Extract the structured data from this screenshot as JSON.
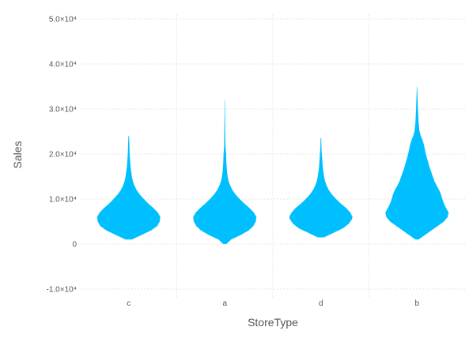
{
  "chart_data": {
    "type": "violin",
    "xlabel": "StoreType",
    "ylabel": "Sales",
    "categories": [
      "c",
      "a",
      "d",
      "b"
    ],
    "ylim": [
      -12000,
      51000
    ],
    "y_ticks": [
      -10000,
      0,
      10000,
      20000,
      30000,
      40000,
      50000
    ],
    "y_tick_labels": [
      "-1.0×10⁴",
      "0",
      "1.0×10⁴",
      "2.0×10⁴",
      "3.0×10⁴",
      "4.0×10⁴",
      "5.0×10⁴"
    ],
    "grid": true,
    "color": "#00bfff",
    "series": [
      {
        "category": "c",
        "min": 1000,
        "max": 24000,
        "median": 6000,
        "profile": [
          [
            1000,
            0.1
          ],
          [
            2000,
            0.4
          ],
          [
            3000,
            0.7
          ],
          [
            4000,
            0.9
          ],
          [
            5000,
            0.98
          ],
          [
            6000,
            1.0
          ],
          [
            7000,
            0.92
          ],
          [
            8000,
            0.78
          ],
          [
            9000,
            0.62
          ],
          [
            10000,
            0.48
          ],
          [
            11000,
            0.35
          ],
          [
            12000,
            0.25
          ],
          [
            13000,
            0.18
          ],
          [
            14000,
            0.13
          ],
          [
            15000,
            0.1
          ],
          [
            16000,
            0.08
          ],
          [
            17000,
            0.06
          ],
          [
            18000,
            0.05
          ],
          [
            19000,
            0.04
          ],
          [
            20000,
            0.03
          ],
          [
            22000,
            0.02
          ],
          [
            24000,
            0.01
          ]
        ]
      },
      {
        "category": "a",
        "min": 0,
        "max": 32000,
        "median": 6000,
        "profile": [
          [
            0,
            0.05
          ],
          [
            1000,
            0.2
          ],
          [
            2000,
            0.5
          ],
          [
            3000,
            0.75
          ],
          [
            4000,
            0.9
          ],
          [
            5000,
            0.98
          ],
          [
            6000,
            1.0
          ],
          [
            7000,
            0.92
          ],
          [
            8000,
            0.78
          ],
          [
            9000,
            0.62
          ],
          [
            10000,
            0.47
          ],
          [
            11000,
            0.34
          ],
          [
            12000,
            0.24
          ],
          [
            13000,
            0.17
          ],
          [
            14000,
            0.12
          ],
          [
            15000,
            0.09
          ],
          [
            16000,
            0.07
          ],
          [
            18000,
            0.05
          ],
          [
            20000,
            0.04
          ],
          [
            22000,
            0.02
          ],
          [
            25000,
            0.015
          ],
          [
            28000,
            0.01
          ],
          [
            32000,
            0.005
          ]
        ]
      },
      {
        "category": "d",
        "min": 1500,
        "max": 23500,
        "median": 6000,
        "profile": [
          [
            1500,
            0.1
          ],
          [
            2500,
            0.4
          ],
          [
            3500,
            0.7
          ],
          [
            4500,
            0.88
          ],
          [
            5500,
            0.98
          ],
          [
            6000,
            1.0
          ],
          [
            7000,
            0.93
          ],
          [
            8000,
            0.8
          ],
          [
            9000,
            0.63
          ],
          [
            10000,
            0.48
          ],
          [
            11000,
            0.35
          ],
          [
            12000,
            0.25
          ],
          [
            13000,
            0.18
          ],
          [
            14000,
            0.13
          ],
          [
            15000,
            0.1
          ],
          [
            16000,
            0.08
          ],
          [
            17000,
            0.06
          ],
          [
            18000,
            0.05
          ],
          [
            20000,
            0.03
          ],
          [
            21000,
            0.02
          ],
          [
            23500,
            0.01
          ]
        ]
      },
      {
        "category": "b",
        "min": 1000,
        "max": 35000,
        "median": 7000,
        "profile": [
          [
            1000,
            0.05
          ],
          [
            2000,
            0.25
          ],
          [
            3000,
            0.45
          ],
          [
            4000,
            0.65
          ],
          [
            5000,
            0.85
          ],
          [
            6000,
            0.97
          ],
          [
            7000,
            1.0
          ],
          [
            8000,
            0.92
          ],
          [
            9000,
            0.85
          ],
          [
            10000,
            0.8
          ],
          [
            11000,
            0.76
          ],
          [
            12000,
            0.7
          ],
          [
            13000,
            0.62
          ],
          [
            14000,
            0.55
          ],
          [
            15000,
            0.5
          ],
          [
            16000,
            0.45
          ],
          [
            17000,
            0.4
          ],
          [
            18000,
            0.36
          ],
          [
            19000,
            0.32
          ],
          [
            20000,
            0.28
          ],
          [
            21000,
            0.25
          ],
          [
            22000,
            0.22
          ],
          [
            23000,
            0.18
          ],
          [
            24000,
            0.12
          ],
          [
            25000,
            0.08
          ],
          [
            27000,
            0.05
          ],
          [
            30000,
            0.03
          ],
          [
            32000,
            0.02
          ],
          [
            35000,
            0.005
          ]
        ]
      }
    ]
  }
}
